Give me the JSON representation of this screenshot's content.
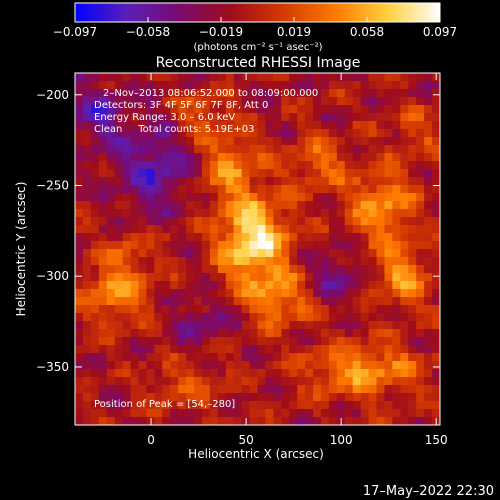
{
  "colorbar": {
    "tick_labels": [
      "−0.097",
      "−0.058",
      "−0.019",
      "0.019",
      "0.058",
      "0.097"
    ],
    "units_label": "(photons cm⁻² s⁻¹ asec⁻²)",
    "range": [
      -0.097,
      0.097
    ],
    "colormap": [
      "#0000ff",
      "#5a1fb8",
      "#7a0a6e",
      "#a00d1a",
      "#d43a00",
      "#ff7a00",
      "#ffd040",
      "#ffffff"
    ]
  },
  "image": {
    "title": "Reconstructed RHESSI Image",
    "annotations": [
      "2–Nov–2013 08:06:52.000 to 08:09:00.000",
      "Detectors: 3F 4F 5F 6F 7F 8F, Att 0",
      "Energy Range: 3.0 – 6.0 keV",
      "Clean     Total counts: 5.19E+03"
    ],
    "peak_label": "Position of Peak = [54,–280]",
    "peak": {
      "x": 54,
      "y": -280
    },
    "x_axis": {
      "title": "Heliocentric X (arcsec)",
      "range": [
        -40,
        152
      ],
      "ticks": [
        0,
        50,
        100,
        150
      ],
      "tick_labels": [
        "0",
        "50",
        "100",
        "150"
      ]
    },
    "y_axis": {
      "title": "Heliocentric Y (arcsec)",
      "range": [
        -382,
        -188
      ],
      "ticks": [
        -200,
        -250,
        -300,
        -350
      ],
      "tick_labels": [
        "−200",
        "−250",
        "−300",
        "−350"
      ]
    },
    "sources": [
      {
        "x": 54,
        "y": -280,
        "value": 0.097,
        "sx": 13,
        "sy": 16
      },
      {
        "x": 42,
        "y": -240,
        "value": 0.05,
        "sx": 11,
        "sy": 14
      },
      {
        "x": 66,
        "y": -312,
        "value": 0.055,
        "sx": 14,
        "sy": 11
      },
      {
        "x": 28,
        "y": -212,
        "value": 0.035,
        "sx": 10,
        "sy": 9
      },
      {
        "x": 122,
        "y": -262,
        "value": 0.06,
        "sx": 12,
        "sy": 15
      },
      {
        "x": 132,
        "y": -300,
        "value": 0.055,
        "sx": 10,
        "sy": 12
      },
      {
        "x": 112,
        "y": -352,
        "value": 0.06,
        "sx": 22,
        "sy": 10
      },
      {
        "x": -18,
        "y": -310,
        "value": 0.06,
        "sx": 12,
        "sy": 11
      },
      {
        "x": -12,
        "y": -288,
        "value": 0.03,
        "sx": 10,
        "sy": 9
      },
      {
        "x": 88,
        "y": -238,
        "value": 0.04,
        "sx": 12,
        "sy": 10
      },
      {
        "x": 140,
        "y": -220,
        "value": 0.025,
        "sx": 10,
        "sy": 10
      },
      {
        "x": 18,
        "y": -360,
        "value": 0.03,
        "sx": 14,
        "sy": 9
      },
      {
        "x": 2,
        "y": -240,
        "value": -0.05,
        "sx": 14,
        "sy": 16
      },
      {
        "x": -28,
        "y": -210,
        "value": -0.04,
        "sx": 12,
        "sy": 14
      },
      {
        "x": 95,
        "y": -300,
        "value": -0.035,
        "sx": 12,
        "sy": 10
      },
      {
        "x": 30,
        "y": -325,
        "value": -0.03,
        "sx": 12,
        "sy": 10
      }
    ]
  },
  "timestamp": "17–May–2022 22:30"
}
